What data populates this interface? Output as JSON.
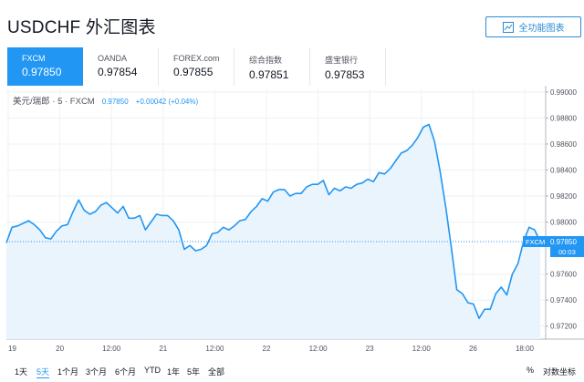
{
  "header": {
    "title": "USDCHF 外汇图表",
    "full_button_label": "全功能图表"
  },
  "tabs": [
    {
      "source": "FXCM",
      "price": "0.97850",
      "active": true
    },
    {
      "source": "OANDA",
      "price": "0.97854",
      "active": false
    },
    {
      "source": "FOREX.com",
      "price": "0.97855",
      "active": false
    },
    {
      "source": "综合指数",
      "price": "0.97851",
      "active": false
    },
    {
      "source": "盛宝银行",
      "price": "0.97853",
      "active": false
    }
  ],
  "legend": {
    "symbol": "美元/瑞郎 · 5 · FXCM",
    "value": "0.97850",
    "change": "+0.00042 (+0.04%)"
  },
  "chart_data": {
    "type": "area",
    "title": "",
    "xlabel": "",
    "ylabel": "",
    "ylim": [
      0.971,
      0.9902
    ],
    "y_ticks": [
      "0.99000",
      "0.98800",
      "0.98600",
      "0.98400",
      "0.98200",
      "0.98000",
      "0.97600",
      "0.97400",
      "0.97200"
    ],
    "x_ticks": [
      "19",
      "20",
      "12:00",
      "21",
      "12:00",
      "22",
      "12:00",
      "23",
      "12:00",
      "26",
      "18:00"
    ],
    "last_price_label": "0.97850",
    "last_price_source": "FXCM",
    "countdown": "00:03",
    "line_color": "#2196f3",
    "series": [
      {
        "values": [
          0.9784,
          0.9796,
          0.9797,
          0.9799,
          0.9801,
          0.9798,
          0.9794,
          0.9788,
          0.9787,
          0.9793,
          0.9797,
          0.9798,
          0.9808,
          0.9817,
          0.9809,
          0.9806,
          0.9808,
          0.9813,
          0.9815,
          0.9811,
          0.9807,
          0.9812,
          0.9803,
          0.9803,
          0.9805,
          0.9794,
          0.98,
          0.9806,
          0.9805,
          0.9805,
          0.9801,
          0.9794,
          0.9779,
          0.9782,
          0.9778,
          0.9779,
          0.9782,
          0.9791,
          0.9792,
          0.9796,
          0.9794,
          0.9797,
          0.9801,
          0.9802,
          0.9808,
          0.9812,
          0.9818,
          0.9816,
          0.9823,
          0.9825,
          0.9825,
          0.982,
          0.9822,
          0.9822,
          0.9827,
          0.9829,
          0.9829,
          0.9832,
          0.9821,
          0.9826,
          0.9824,
          0.9827,
          0.9826,
          0.9829,
          0.983,
          0.9833,
          0.9831,
          0.9838,
          0.9837,
          0.9841,
          0.9847,
          0.9853,
          0.9855,
          0.9859,
          0.9865,
          0.9873,
          0.9875,
          0.9862,
          0.9839,
          0.9812,
          0.9781,
          0.9748,
          0.9745,
          0.9738,
          0.9737,
          0.9726,
          0.9733,
          0.9733,
          0.9745,
          0.975,
          0.9744,
          0.976,
          0.9768,
          0.9785,
          0.9796,
          0.9794,
          0.9785
        ]
      }
    ]
  },
  "footer": {
    "ranges": [
      "1天",
      "5天",
      "1个月",
      "3个月",
      "6个月",
      "YTD",
      "1年",
      "5年",
      "全部"
    ],
    "active_range": "5天",
    "percent_label": "%",
    "log_label": "对数坐标"
  },
  "colors": {
    "accent": "#2196f3",
    "button": "#2a8bd4",
    "area_fill": "#eaf4fd",
    "grid": "#eef0f3"
  }
}
